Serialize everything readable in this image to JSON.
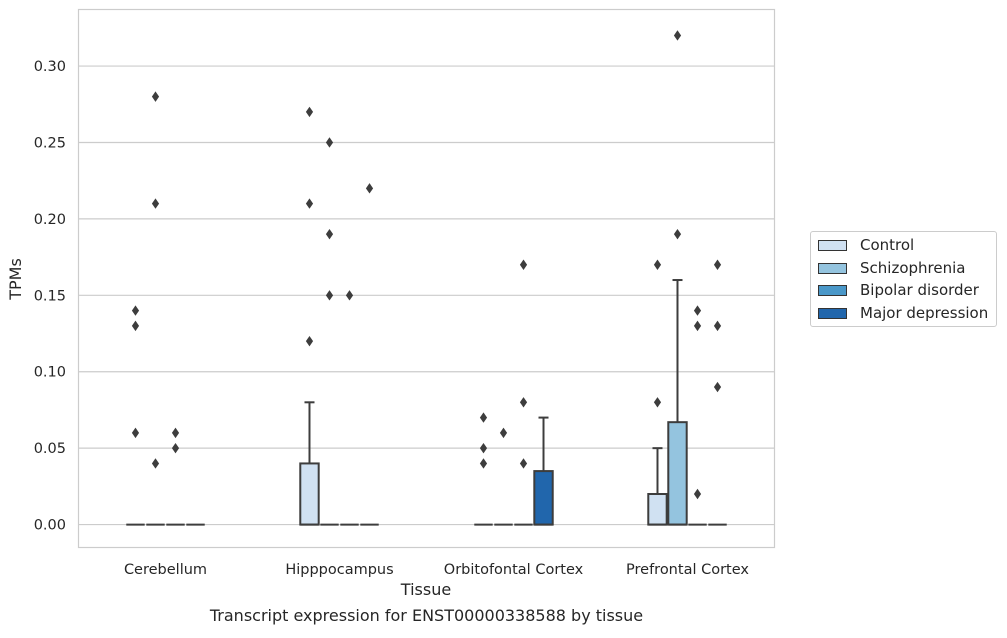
{
  "chart_data": {
    "type": "box",
    "title": "",
    "xlabel": "Tissue",
    "ylabel": "TPMs",
    "caption": "Transcript expression for ENST00000338588 by tissue",
    "ylim": [
      -0.015,
      0.337
    ],
    "yticks": [
      "0.00",
      "0.05",
      "0.10",
      "0.15",
      "0.20",
      "0.25",
      "0.30"
    ],
    "grid": true,
    "legend_position": "right",
    "categories": [
      "Cerebellum",
      "Hipppocampus",
      "Orbitofontal Cortex",
      "Prefrontal Cortex"
    ],
    "series": [
      {
        "name": "Control",
        "color": "#d0e1f2",
        "boxes": [
          {
            "q1": 0,
            "median": 0,
            "q3": 0,
            "whisker_low": 0,
            "whisker_high": 0,
            "outliers": [
              0.14,
              0.13,
              0.06
            ]
          },
          {
            "q1": 0,
            "median": 0,
            "q3": 0.04,
            "whisker_low": 0,
            "whisker_high": 0.08,
            "outliers": [
              0.27,
              0.21,
              0.12
            ]
          },
          {
            "q1": 0,
            "median": 0,
            "q3": 0,
            "whisker_low": 0,
            "whisker_high": 0,
            "outliers": [
              0.07,
              0.05,
              0.04
            ]
          },
          {
            "q1": 0,
            "median": 0,
            "q3": 0.02,
            "whisker_low": 0,
            "whisker_high": 0.05,
            "outliers": [
              0.17,
              0.08
            ]
          }
        ]
      },
      {
        "name": "Schizophrenia",
        "color": "#94c4df",
        "boxes": [
          {
            "q1": 0,
            "median": 0,
            "q3": 0,
            "whisker_low": 0,
            "whisker_high": 0,
            "outliers": [
              0.28,
              0.21,
              0.04
            ]
          },
          {
            "q1": 0,
            "median": 0,
            "q3": 0,
            "whisker_low": 0,
            "whisker_high": 0,
            "outliers": [
              0.25,
              0.19,
              0.15
            ]
          },
          {
            "q1": 0,
            "median": 0,
            "q3": 0,
            "whisker_low": 0,
            "whisker_high": 0,
            "outliers": [
              0.06
            ]
          },
          {
            "q1": 0,
            "median": 0,
            "q3": 0.067,
            "whisker_low": 0,
            "whisker_high": 0.16,
            "outliers": [
              0.32,
              0.19
            ]
          }
        ]
      },
      {
        "name": "Bipolar disorder",
        "color": "#4a98c9",
        "boxes": [
          {
            "q1": 0,
            "median": 0,
            "q3": 0,
            "whisker_low": 0,
            "whisker_high": 0,
            "outliers": [
              0.06,
              0.05
            ]
          },
          {
            "q1": 0,
            "median": 0,
            "q3": 0,
            "whisker_low": 0,
            "whisker_high": 0,
            "outliers": [
              0.15
            ]
          },
          {
            "q1": 0,
            "median": 0,
            "q3": 0,
            "whisker_low": 0,
            "whisker_high": 0,
            "outliers": [
              0.17,
              0.08,
              0.04
            ]
          },
          {
            "q1": 0,
            "median": 0,
            "q3": 0,
            "whisker_low": 0,
            "whisker_high": 0,
            "outliers": [
              0.14,
              0.13,
              0.02
            ]
          }
        ]
      },
      {
        "name": "Major depression",
        "color": "#2166ac",
        "boxes": [
          {
            "q1": 0,
            "median": 0,
            "q3": 0,
            "whisker_low": 0,
            "whisker_high": 0,
            "outliers": []
          },
          {
            "q1": 0,
            "median": 0,
            "q3": 0,
            "whisker_low": 0,
            "whisker_high": 0,
            "outliers": [
              0.22
            ]
          },
          {
            "q1": 0,
            "median": 0,
            "q3": 0.035,
            "whisker_low": 0,
            "whisker_high": 0.07,
            "outliers": []
          },
          {
            "q1": 0,
            "median": 0,
            "q3": 0,
            "whisker_low": 0,
            "whisker_high": 0,
            "outliers": [
              0.17,
              0.13,
              0.09
            ]
          }
        ]
      }
    ]
  }
}
